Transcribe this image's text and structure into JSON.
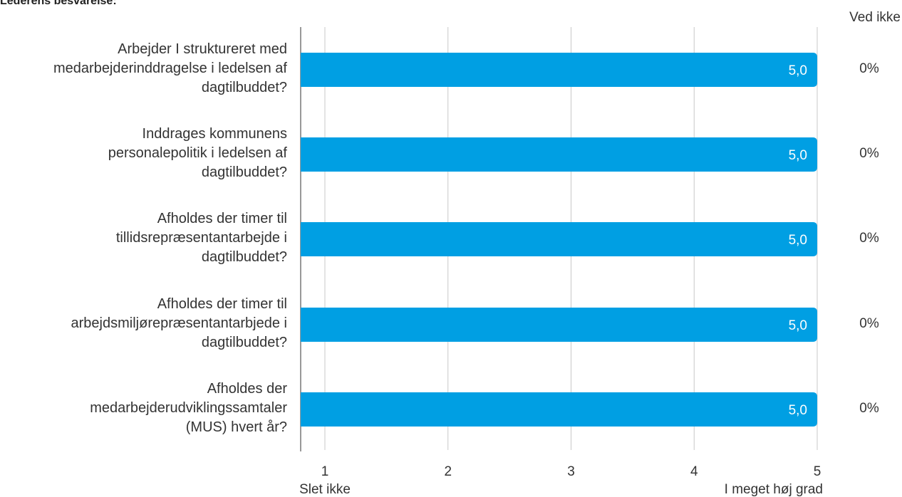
{
  "chart_data": {
    "type": "bar",
    "orientation": "horizontal",
    "title": "Lederens besvarelse:",
    "categories": [
      "Arbejder I struktureret med medarbejderinddragelse i ledelsen af dagtilbuddet?",
      "Inddrages kommunens personalepolitik i ledelsen af dagtilbuddet?",
      "Afholdes der timer til tillidsrepræsentantarbejde i dagtilbuddet?",
      "Afholdes der timer til arbejdsmiljørepræsentantarbjede i dagtilbuddet?",
      "Afholdes der medarbejderudviklingssamtaler (MUS) hvert år?"
    ],
    "category_lines": [
      [
        "Arbejder I struktureret med",
        "medarbejderinddragelse i ledelsen af",
        "dagtilbuddet?"
      ],
      [
        "Inddrages kommunens",
        "personalepolitik i ledelsen af",
        "dagtilbuddet?"
      ],
      [
        "Afholdes der timer til",
        "tillidsrepræsentantarbejde i",
        "dagtilbuddet?"
      ],
      [
        "Afholdes der timer til",
        "arbejdsmiljørepræsentantarbjede i",
        "dagtilbuddet?"
      ],
      [
        "Afholdes der",
        "medarbejderudviklingssamtaler",
        "(MUS) hvert år?"
      ]
    ],
    "values": [
      5.0,
      5.0,
      5.0,
      5.0,
      5.0
    ],
    "value_labels": [
      "5,0",
      "5,0",
      "5,0",
      "5,0",
      "5,0"
    ],
    "xlim": [
      0.8,
      5
    ],
    "xticks": [
      1,
      2,
      3,
      4,
      5
    ],
    "xtick_labels": [
      "1",
      "2",
      "3",
      "4",
      "5"
    ],
    "x_end_labels": {
      "low": "Slet ikke",
      "high": "I meget høj grad"
    },
    "grid": true,
    "bar_color": "#009fe3",
    "ved_ikke": {
      "header": "Ved ikke",
      "values": [
        "0%",
        "0%",
        "0%",
        "0%",
        "0%"
      ]
    }
  }
}
